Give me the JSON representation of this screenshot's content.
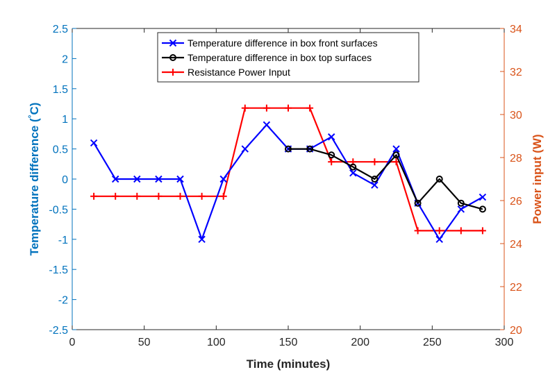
{
  "chart_data": {
    "type": "line",
    "xlabel": "Time (minutes)",
    "ylabel_left": "Temperature difference (°C)",
    "ylabel_left_parts": [
      "Temperature difference (",
      "°",
      "C)"
    ],
    "ylabel_right": "Power input (W)",
    "xlim": [
      0,
      300
    ],
    "ylim_left": [
      -2.5,
      2.5
    ],
    "ylim_right": [
      20,
      34
    ],
    "x_ticks": [
      0,
      50,
      100,
      150,
      200,
      250,
      300
    ],
    "y_left_ticks": [
      -2.5,
      -2,
      -1.5,
      -1,
      -0.5,
      0,
      0.5,
      1,
      1.5,
      2,
      2.5
    ],
    "y_right_ticks": [
      20,
      22,
      24,
      26,
      28,
      30,
      32,
      34
    ],
    "colors": {
      "left_axis": "#0072BD",
      "right_axis": "#D95319",
      "axes": "#262626"
    },
    "series": [
      {
        "name": "Temperature difference in box front surfaces",
        "axis": "left",
        "color": "#0000FF",
        "marker": "x",
        "line": "solid",
        "x": [
          15,
          30,
          45,
          60,
          75,
          90,
          105,
          120,
          135,
          150,
          165,
          180,
          195,
          210,
          225,
          240,
          255,
          270,
          285
        ],
        "values": [
          0.6,
          0,
          0,
          0,
          0,
          -1,
          0,
          0.5,
          0.9,
          0.5,
          0.5,
          0.7,
          0.1,
          -0.1,
          0.5,
          -0.4,
          -1,
          -0.5,
          -0.3
        ]
      },
      {
        "name": "Temperature difference in box top surfaces",
        "axis": "left",
        "color": "#000000",
        "marker": "o",
        "line": "solid",
        "x": [
          150,
          165,
          180,
          195,
          210,
          225,
          240,
          255,
          270,
          285
        ],
        "values": [
          0.5,
          0.5,
          0.4,
          0.2,
          0,
          0.4,
          -0.4,
          0,
          -0.4,
          -0.5
        ]
      },
      {
        "name": "Resistance Power Input",
        "axis": "right",
        "color": "#FF0000",
        "marker": "+",
        "line": "solid",
        "x": [
          15,
          30,
          45,
          60,
          75,
          90,
          105,
          120,
          135,
          150,
          165,
          180,
          195,
          210,
          225,
          240,
          255,
          270,
          285
        ],
        "values": [
          26.2,
          26.2,
          26.2,
          26.2,
          26.2,
          26.2,
          26.2,
          30.3,
          30.3,
          30.3,
          30.3,
          27.8,
          27.8,
          27.8,
          27.8,
          24.6,
          24.6,
          24.6,
          24.6
        ]
      }
    ],
    "legend": {
      "position": "top-center",
      "entries": [
        "Temperature difference in box front surfaces",
        "Temperature difference in box top surfaces",
        "Resistance Power Input"
      ]
    }
  }
}
